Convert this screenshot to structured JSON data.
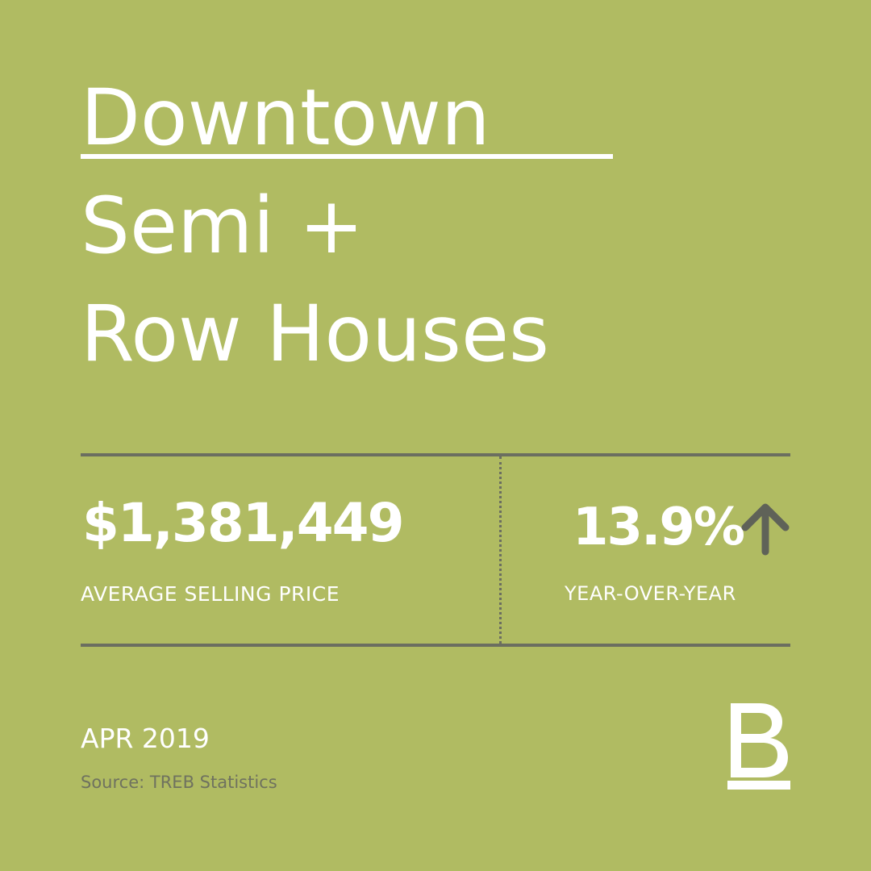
{
  "title": {
    "line1": "Downtown",
    "line2": "Semi +",
    "line3": "Row Houses"
  },
  "stats": {
    "price_value": "$1,381,449",
    "price_label": "AVERAGE SELLING PRICE",
    "yoy_value": "13.9%",
    "yoy_label": "YEAR-OVER-YEAR",
    "trend_icon": "arrow-up-icon"
  },
  "footer": {
    "date": "APR 2019",
    "source": "Source: TREB Statistics",
    "brand_logo": "brand-b-logo"
  },
  "colors": {
    "background": "#b0bb62",
    "text_primary": "#ffffff",
    "rules": "#6b6e60",
    "source_text": "#6f725f"
  }
}
